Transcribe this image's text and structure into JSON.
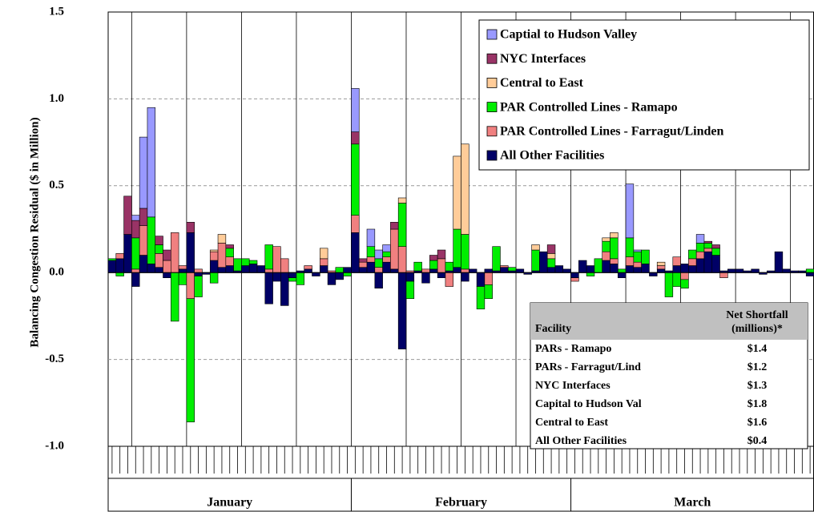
{
  "chart_data": {
    "type": "bar",
    "stacked": true,
    "ylabel": "Balancing Congestion Residual ($ in Million)",
    "ylim": [
      -1.0,
      1.5
    ],
    "yticks": [
      {
        "value": -1.0,
        "label": "-1.0"
      },
      -0.5,
      {
        "value": 0.0,
        "label": "0.0"
      },
      0.5,
      {
        "value": 1.0,
        "label": "1.0"
      },
      1.5
    ],
    "grid": true,
    "categories": [
      null,
      null,
      null,
      null,
      null,
      null,
      null,
      null,
      null,
      null,
      null,
      null,
      null,
      null,
      null,
      null,
      null,
      null,
      null,
      null,
      null,
      null,
      null,
      null,
      null,
      null,
      null,
      null,
      null,
      null,
      null,
      null,
      null,
      null,
      null,
      null,
      null,
      null,
      null,
      null,
      null,
      null,
      null,
      null,
      null,
      null,
      null,
      null,
      null,
      null,
      null,
      null,
      null,
      null,
      null,
      null,
      null,
      null,
      null,
      null,
      null,
      null,
      null,
      null,
      null,
      null,
      null,
      null,
      null,
      null,
      null,
      null,
      null,
      null,
      null,
      null,
      null,
      null,
      null,
      null,
      null,
      null,
      null,
      null,
      null,
      null,
      null,
      null,
      null,
      null
    ],
    "groups": [
      {
        "label": "January",
        "count": 31
      },
      {
        "label": "February",
        "count": 28
      },
      {
        "label": "March",
        "count": 31
      }
    ],
    "legend": "top-right",
    "series": [
      {
        "name": "Captial to Hudson Valley",
        "color": "#9999ff",
        "values": [
          0,
          0,
          0,
          0.03,
          0.41,
          0.63,
          0,
          0,
          0,
          0,
          0,
          0,
          0,
          0,
          0,
          0,
          0,
          0,
          0,
          0,
          0,
          0,
          0,
          0,
          0,
          0,
          0,
          0,
          0,
          0,
          0,
          0.25,
          0,
          0.1,
          0.05,
          0.04,
          0,
          0,
          0,
          0,
          0,
          0,
          0,
          0,
          0,
          0,
          0,
          0,
          0,
          0,
          0,
          0,
          0,
          0,
          0,
          0,
          0,
          0,
          0,
          0,
          0,
          0,
          0,
          0,
          0,
          0,
          0.31,
          0.01,
          0,
          0,
          0,
          0,
          0,
          0,
          0,
          0.05,
          0,
          0,
          0,
          0,
          0,
          0,
          0,
          0,
          0,
          0,
          0,
          0,
          0,
          0
        ]
      },
      {
        "name": "NYC Interfaces",
        "color": "#993366",
        "values": [
          0,
          0,
          0.22,
          0.1,
          0.1,
          0,
          0.05,
          0.06,
          0,
          0,
          0.06,
          0,
          0,
          0,
          0,
          0.02,
          0,
          0,
          0,
          0,
          0,
          0,
          0,
          0,
          0,
          0,
          0,
          0,
          0,
          0,
          0,
          0.07,
          0.02,
          0,
          0,
          0,
          0.04,
          0,
          0,
          0,
          0,
          0.03,
          0.05,
          0,
          0,
          0,
          0,
          0,
          0,
          0,
          0,
          0,
          0,
          0,
          0,
          0,
          0.05,
          0,
          0,
          0,
          0,
          0,
          0,
          0,
          0,
          0,
          0,
          0,
          0,
          0,
          0,
          0,
          0,
          0,
          0,
          0,
          0.01,
          0.02,
          0,
          0,
          0,
          0,
          0,
          0,
          0,
          0,
          0,
          0,
          0,
          0
        ]
      },
      {
        "name": "Central to East",
        "color": "#ffcc99",
        "values": [
          0,
          0,
          0,
          0,
          0,
          0,
          0,
          0,
          0,
          0,
          0,
          0,
          0,
          0.01,
          0.05,
          0,
          0,
          0,
          0,
          0,
          0,
          0,
          0,
          0,
          0,
          0,
          0,
          0.06,
          0,
          0,
          0,
          0,
          0,
          0,
          0,
          0,
          0,
          0.03,
          0,
          0,
          0,
          0,
          0,
          0,
          0.42,
          0.52,
          0,
          0,
          0,
          0,
          0,
          0,
          0,
          0,
          0.03,
          0,
          0.03,
          0,
          0,
          0,
          0,
          0,
          0,
          0.02,
          0.03,
          0,
          0,
          0,
          0,
          0,
          0.02,
          0,
          0,
          0,
          0,
          0,
          0,
          0,
          0,
          0,
          0,
          0,
          0,
          0,
          0,
          0,
          0,
          0,
          0,
          0
        ]
      },
      {
        "name": "PAR Controlled Lines - Ramapo",
        "color": "#00ee00",
        "values": [
          0.01,
          -0.02,
          0,
          0.18,
          0,
          0.27,
          0.05,
          0,
          -0.28,
          -0.07,
          -0.71,
          -0.12,
          0,
          -0.06,
          0,
          0.05,
          0.07,
          0.04,
          0.02,
          0,
          0.14,
          0,
          0,
          -0.02,
          -0.07,
          0,
          0,
          0,
          0,
          0.03,
          -0.02,
          0.41,
          0,
          0.06,
          0.05,
          0.03,
          0,
          0.25,
          -0.1,
          0.05,
          0,
          0.05,
          0,
          0.05,
          0.22,
          0.2,
          0,
          -0.13,
          -0.08,
          0.14,
          0,
          0.02,
          0,
          0,
          0.12,
          0,
          0.05,
          0,
          0,
          0,
          0,
          -0.02,
          0.08,
          0.06,
          0.12,
          0.02,
          0.11,
          0.06,
          0.08,
          0,
          0,
          -0.14,
          -0.08,
          -0.05,
          0.05,
          0.05,
          0.03,
          0.04,
          0,
          0,
          0,
          0,
          0,
          0,
          0,
          0,
          0,
          0,
          0,
          0.02
        ]
      },
      {
        "name": "PAR Controlled Lines - Farragut/Linden",
        "color": "#f08080",
        "values": [
          0,
          0.03,
          0,
          0.02,
          0.17,
          0,
          0.08,
          0.07,
          0.23,
          0.02,
          -0.15,
          0.02,
          0,
          0.05,
          0.14,
          0.05,
          0,
          0,
          0,
          0,
          0.02,
          0.15,
          0.08,
          0,
          0,
          0.02,
          0,
          0.04,
          0.01,
          0,
          0,
          0.1,
          0.03,
          0.03,
          0.03,
          0.03,
          0.23,
          0.15,
          0.01,
          0,
          0.02,
          0,
          0.08,
          -0.08,
          0,
          0.02,
          0,
          0,
          -0.07,
          0,
          0.01,
          0,
          0,
          0,
          0,
          0,
          0,
          0,
          0,
          -0.02,
          0,
          0,
          0,
          0.05,
          0.03,
          0,
          0.05,
          0.03,
          0,
          0,
          0.02,
          0,
          0.05,
          -0.04,
          0.04,
          0.04,
          0.02,
          0,
          -0.03,
          0,
          0,
          0,
          0,
          0,
          0,
          0,
          0,
          0,
          0,
          0
        ]
      },
      {
        "name": "All Other Facilities",
        "color": "#000066",
        "values": [
          0.07,
          0.08,
          0.22,
          -0.08,
          0.1,
          0.05,
          0.03,
          -0.03,
          0,
          0.02,
          0.23,
          -0.02,
          -0.01,
          0.07,
          0.03,
          0.04,
          0.01,
          0.04,
          0.05,
          0.04,
          -0.18,
          -0.05,
          -0.19,
          -0.03,
          0.01,
          0.02,
          -0.02,
          0.04,
          -0.07,
          -0.04,
          0.03,
          0.23,
          0.03,
          0.06,
          -0.09,
          0.06,
          0.02,
          -0.44,
          -0.05,
          0.01,
          -0.06,
          0.02,
          -0.03,
          0.01,
          0.03,
          -0.05,
          0.02,
          -0.08,
          0.02,
          0.01,
          0.03,
          0.01,
          0.02,
          -0.01,
          0.01,
          0.12,
          0.03,
          0.04,
          0.02,
          -0.03,
          0.07,
          0.04,
          0,
          0.07,
          0.05,
          -0.03,
          0.04,
          0.03,
          0.05,
          -0.02,
          0.02,
          0.01,
          0.04,
          0.05,
          0.04,
          0.08,
          0.12,
          0.1,
          0.01,
          0.02,
          0.02,
          0.01,
          0.02,
          -0.01,
          0.01,
          0.12,
          0.02,
          0.01,
          0.01,
          -0.02
        ]
      }
    ]
  },
  "table": {
    "header": [
      "Facility",
      [
        "Net Shortfall",
        "(millions)*"
      ]
    ],
    "rows": [
      [
        "PARs - Ramapo",
        "$1.4"
      ],
      [
        "PARs - Farragut/Lind",
        "$1.2"
      ],
      [
        "NYC Interfaces",
        "$1.3"
      ],
      [
        "Capital to Hudson Val",
        "$1.8"
      ],
      [
        "Central to East",
        "$1.6"
      ],
      [
        "All Other Facilities",
        "$0.4"
      ]
    ]
  }
}
